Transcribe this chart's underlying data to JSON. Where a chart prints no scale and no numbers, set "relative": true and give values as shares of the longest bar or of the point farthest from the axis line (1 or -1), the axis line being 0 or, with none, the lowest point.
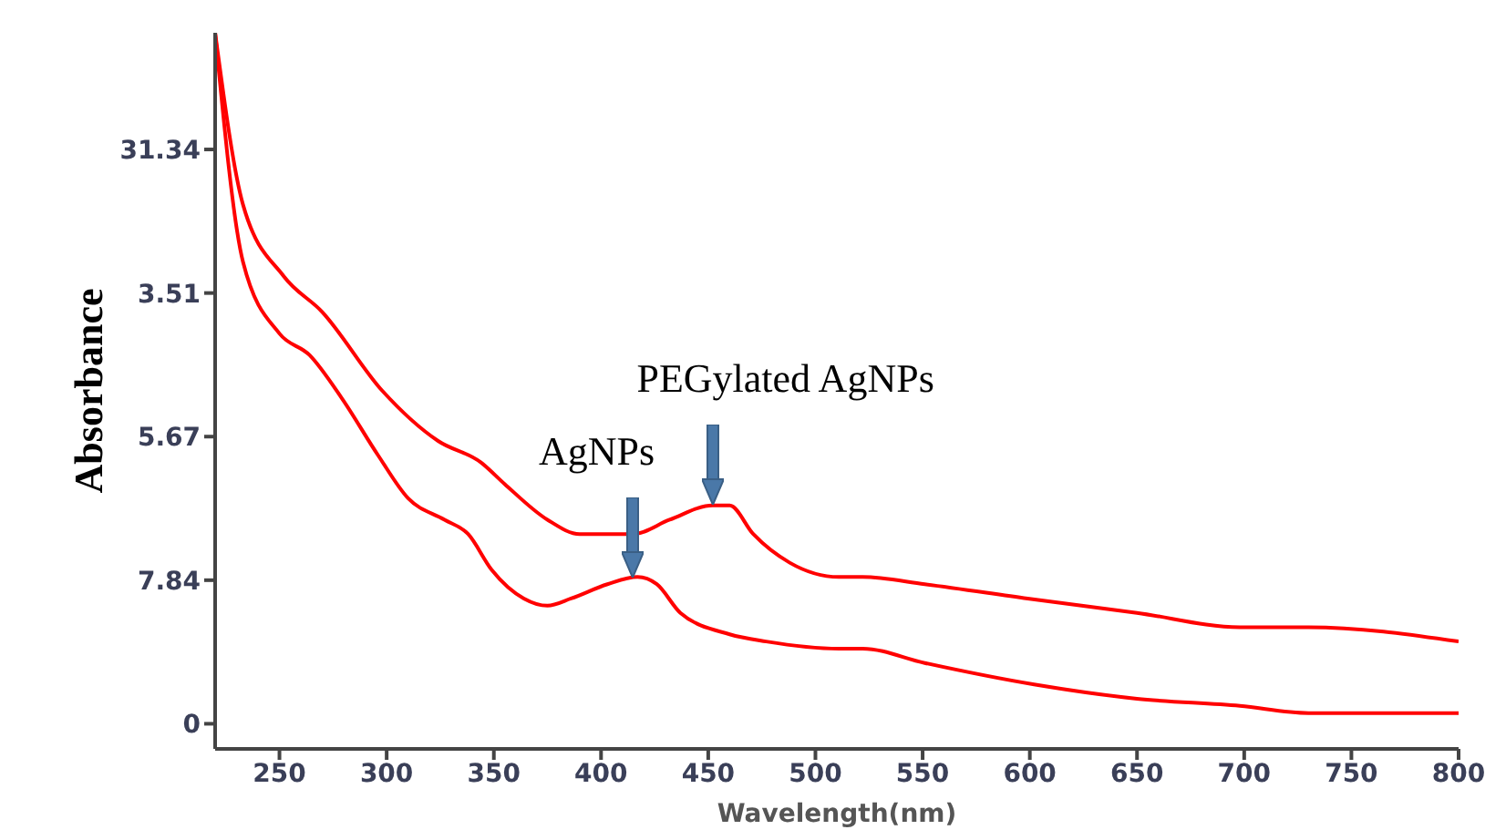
{
  "chart_data": {
    "type": "line",
    "relative": true,
    "xlabel": "Wavelength(nm)",
    "ylabel": "Absorbance",
    "xlim": [
      220,
      800
    ],
    "xticks": [
      250,
      300,
      350,
      400,
      450,
      500,
      550,
      600,
      650,
      700,
      750,
      800
    ],
    "y_categories": [
      "31.34",
      "3.51",
      "5.67",
      "7.84",
      "0"
    ],
    "grid": false,
    "legend": false,
    "marker": "none",
    "line_style": "solid",
    "series": [
      {
        "color": "#ff0000",
        "x": [
          220,
          233,
          252,
          270,
          298,
          324,
          344,
          355,
          375,
          390,
          415,
          432,
          452,
          460,
          471,
          488,
          511,
          522,
          551,
          599,
          650,
          698,
          730,
          800
        ],
        "values": [
          1.0,
          0.76,
          0.66,
          0.61,
          0.5,
          0.43,
          0.4,
          0.37,
          0.32,
          0.3,
          0.3,
          0.32,
          0.34,
          0.34,
          0.3,
          0.26,
          0.24,
          0.24,
          0.23,
          0.21,
          0.19,
          0.17,
          0.17,
          0.15
        ]
      },
      {
        "color": "#ff0000",
        "x": [
          220,
          233,
          250,
          264,
          279,
          296,
          310,
          327,
          338,
          349,
          364,
          375,
          386,
          403,
          417,
          426,
          437,
          460,
          477,
          511,
          522,
          551,
          602,
          650,
          698,
          730,
          800
        ],
        "values": [
          1.0,
          0.68,
          0.58,
          0.55,
          0.49,
          0.41,
          0.35,
          0.32,
          0.3,
          0.25,
          0.21,
          0.2,
          0.21,
          0.23,
          0.24,
          0.23,
          0.19,
          0.16,
          0.15,
          0.14,
          0.14,
          0.12,
          0.09,
          0.07,
          0.06,
          0.05,
          0.05
        ]
      }
    ],
    "annotations": [
      {
        "text": "AgNPs",
        "x": 415,
        "y": 0.24
      },
      {
        "text": "PEGylated AgNPs",
        "x": 452,
        "y": 0.34
      }
    ]
  }
}
